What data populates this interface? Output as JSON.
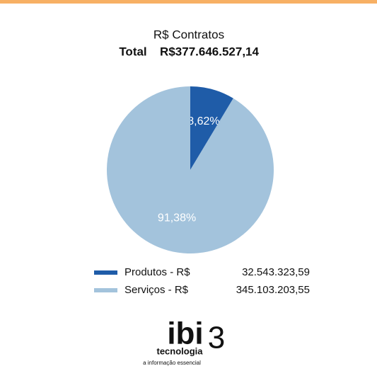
{
  "chart_data": {
    "type": "pie",
    "title": "R$ Contratos",
    "total_label": "Total",
    "total": "R$377.646.527,14",
    "categories": [
      "Produtos - R$",
      "Serviços - R$"
    ],
    "values": [
      8.62,
      91.38
    ],
    "value_labels": [
      "8,62%",
      "91,38%"
    ],
    "colors": [
      "#1f5ca8",
      "#a3c3dc"
    ],
    "amounts": [
      "32.543.323,59",
      "345.103.203,55"
    ]
  },
  "logo": {
    "name": "ibi",
    "mark": "3",
    "subtitle": "tecnologia",
    "tagline": "a informação essencial"
  }
}
